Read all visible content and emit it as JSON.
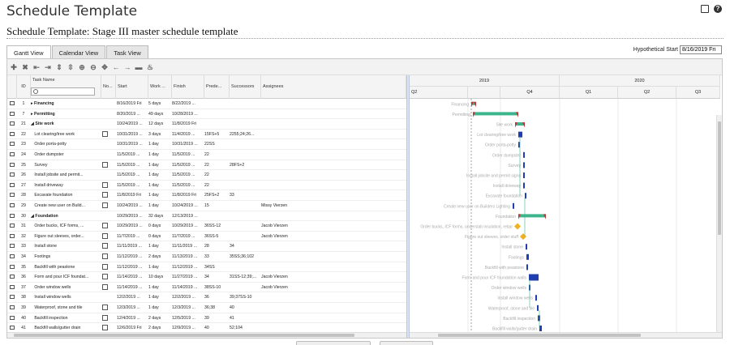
{
  "page": {
    "title": "Schedule Template",
    "subtitle": "Schedule Template:  Stage III master schedule template"
  },
  "tabs": [
    {
      "label": "Gantt View",
      "active": true
    },
    {
      "label": "Calendar View",
      "active": false
    },
    {
      "label": "Task View",
      "active": false
    }
  ],
  "hypothetical": {
    "label": "Hypothetical Start",
    "value": "8/16/2019 Fri"
  },
  "toolbar": [
    "add-icon",
    "delete-icon",
    "outdent-icon",
    "indent-icon",
    "collapse-icon",
    "expand-icon",
    "zoom-in-icon",
    "zoom-out-icon",
    "fit-icon",
    "arrow-left-icon",
    "arrow-right-icon",
    "link-icon",
    "critical-path-icon"
  ],
  "columns": {
    "id": "ID",
    "task_name": "Task Name",
    "notes": "No...",
    "start": "Start",
    "work": "Work ...",
    "finish": "Finish",
    "predecessors": "Prede...",
    "successors": "Successors",
    "assignees": "Assignees"
  },
  "gantt_header": {
    "years": [
      "2019",
      "2020"
    ],
    "quarters": [
      "Q2",
      "Q3",
      "Q4",
      "Q1",
      "Q2",
      "Q3"
    ]
  },
  "rows": [
    {
      "id": "1",
      "name": "Financing",
      "summary": true,
      "expand": "▸",
      "note": false,
      "start": "8/16/2019 Fri",
      "work": "5 days",
      "finish": "8/22/2019 ...",
      "pred": "",
      "succ": "",
      "asg": "",
      "label": "Financing"
    },
    {
      "id": "7",
      "name": "Permitting",
      "summary": true,
      "expand": "▸",
      "note": false,
      "start": "8/20/2019 ...",
      "work": "49 days",
      "finish": "10/28/2019 ...",
      "pred": "",
      "succ": "",
      "asg": "",
      "label": "Permitting"
    },
    {
      "id": "21",
      "name": "Site work",
      "summary": true,
      "expand": "◢",
      "note": false,
      "start": "10/24/2019 ...",
      "work": "12 days",
      "finish": "11/8/2019 Fri",
      "pred": "",
      "succ": "",
      "asg": "",
      "label": "Site work"
    },
    {
      "id": "22",
      "name": "Lot clearing/tree work",
      "summary": false,
      "note": true,
      "start": "10/31/2019 ...",
      "work": "3 days",
      "finish": "11/4/2019 ...",
      "pred": "15FS+5",
      "succ": "2255;24;26...",
      "asg": "",
      "label": "Lot clearing/tree work"
    },
    {
      "id": "23",
      "name": "Order porta-potty",
      "summary": false,
      "note": false,
      "start": "10/31/2019 ...",
      "work": "1 day",
      "finish": "10/31/2019 ...",
      "pred": "22SS",
      "succ": "",
      "asg": "",
      "label": "Order porta-potty"
    },
    {
      "id": "24",
      "name": "Order dumpster",
      "summary": false,
      "note": false,
      "start": "11/5/2019 ...",
      "work": "1 day",
      "finish": "11/5/2019 ...",
      "pred": "22",
      "succ": "",
      "asg": "",
      "label": "Order dumpster"
    },
    {
      "id": "25",
      "name": "Survey",
      "summary": false,
      "note": true,
      "start": "11/5/2019 ...",
      "work": "1 day",
      "finish": "11/5/2019 ...",
      "pred": "22",
      "succ": "28FS+2",
      "asg": "",
      "label": "Survey"
    },
    {
      "id": "26",
      "name": "Install jobsite and permit...",
      "summary": false,
      "note": false,
      "start": "11/5/2019 ...",
      "work": "1 day",
      "finish": "11/5/2019 ...",
      "pred": "22",
      "succ": "",
      "asg": "",
      "label": "Install jobsite and permit signs"
    },
    {
      "id": "27",
      "name": "Install driveway",
      "summary": false,
      "note": true,
      "start": "11/5/2019 ...",
      "work": "1 day",
      "finish": "11/5/2019 ...",
      "pred": "22",
      "succ": "",
      "asg": "",
      "label": "Install driveway"
    },
    {
      "id": "28",
      "name": "Excavate foundation",
      "summary": false,
      "note": true,
      "start": "11/8/2019 Fri",
      "work": "1 day",
      "finish": "11/8/2019 Fri",
      "pred": "25FS+2",
      "succ": "33",
      "asg": "",
      "label": "Excavate foundation"
    },
    {
      "id": "29",
      "name": "Create new user on Build...",
      "summary": false,
      "note": true,
      "start": "10/24/2019 ...",
      "work": "1 day",
      "finish": "10/24/2019 ...",
      "pred": "15",
      "succ": "",
      "asg": "Missy Vierzen",
      "label": "Create new user on Builders Lighting"
    },
    {
      "id": "30",
      "name": "Foundation",
      "summary": true,
      "expand": "◢",
      "note": false,
      "start": "10/29/2019 ...",
      "work": "32 days",
      "finish": "12/13/2019 ...",
      "pred": "",
      "succ": "",
      "asg": "",
      "label": "Foundation"
    },
    {
      "id": "31",
      "name": "Order bucks, ICF forms, ...",
      "summary": false,
      "note": true,
      "start": "10/29/2019 ...",
      "work": "0 days",
      "finish": "10/29/2019 ...",
      "pred": "36SS-12",
      "succ": "",
      "asg": "Jacob Vierzen",
      "label": "Order bucks, ICF forms, underslab insulation, rebar"
    },
    {
      "id": "32",
      "name": "Figure out sleeves, order...",
      "summary": false,
      "note": true,
      "start": "11/7/2019 ...",
      "work": "0 days",
      "finish": "11/7/2019 ...",
      "pred": "36SS-5",
      "succ": "",
      "asg": "Jacob Vierzen",
      "label": "Figure out sleeves, order stuff"
    },
    {
      "id": "33",
      "name": "Install stone",
      "summary": false,
      "note": true,
      "start": "11/11/2019 ...",
      "work": "1 day",
      "finish": "11/11/2019 ...",
      "pred": "28",
      "succ": "34",
      "asg": "",
      "label": "Install stone"
    },
    {
      "id": "34",
      "name": "Footings",
      "summary": false,
      "note": true,
      "start": "11/12/2019 ...",
      "work": "2 days",
      "finish": "11/13/2019 ...",
      "pred": "33",
      "succ": "35SS;36;102",
      "asg": "",
      "label": "Footings"
    },
    {
      "id": "35",
      "name": "Backfill with peastone",
      "summary": false,
      "note": true,
      "start": "11/12/2019 ...",
      "work": "1 day",
      "finish": "11/12/2019 ...",
      "pred": "34SS",
      "succ": "",
      "asg": "",
      "label": "Backfill with peastone"
    },
    {
      "id": "36",
      "name": "Form and pour ICF foundat...",
      "summary": false,
      "note": true,
      "start": "11/14/2019 ...",
      "work": "10 days",
      "finish": "11/27/2019 ...",
      "pred": "34",
      "succ": "31SS-12;39;...",
      "asg": "Jacob Vierzen",
      "label": "Form and pour ICF foundation walls"
    },
    {
      "id": "37",
      "name": "Order window wells",
      "summary": false,
      "note": true,
      "start": "11/14/2019 ...",
      "work": "1 day",
      "finish": "11/14/2019 ...",
      "pred": "38SS-10",
      "succ": "",
      "asg": "Jacob Vierzen",
      "label": "Order window wells"
    },
    {
      "id": "38",
      "name": "Install window wells",
      "summary": false,
      "note": false,
      "start": "12/2/2019 ...",
      "work": "1 day",
      "finish": "12/2/2019 ...",
      "pred": "36",
      "succ": "39;37SS-10",
      "asg": "",
      "label": "Install window wells"
    },
    {
      "id": "39",
      "name": "Waterproof, stone and tile",
      "summary": false,
      "note": true,
      "start": "12/3/2019 ...",
      "work": "1 day",
      "finish": "12/3/2019 ...",
      "pred": "36;38",
      "succ": "40",
      "asg": "",
      "label": "Waterproof, stone and tile"
    },
    {
      "id": "40",
      "name": "Backfill inspection",
      "summary": false,
      "note": true,
      "start": "12/4/2019 ...",
      "work": "2 days",
      "finish": "12/5/2019 ...",
      "pred": "39",
      "succ": "41",
      "asg": "",
      "label": "Backfill inspection"
    },
    {
      "id": "41",
      "name": "Backfill walls/gutter drain",
      "summary": false,
      "note": true,
      "start": "12/6/2019 Fri",
      "work": "2 days",
      "finish": "12/9/2019 ...",
      "pred": "40",
      "succ": "52;104",
      "asg": "",
      "label": "Backfill walls/gutter drain"
    }
  ],
  "colors": {
    "summary_bar": "#3cb48c",
    "summary_cap": "#c83232",
    "task_bar": "#1f3fb0",
    "milestone": "#f0b020",
    "label_text": "#aaaaaa"
  }
}
